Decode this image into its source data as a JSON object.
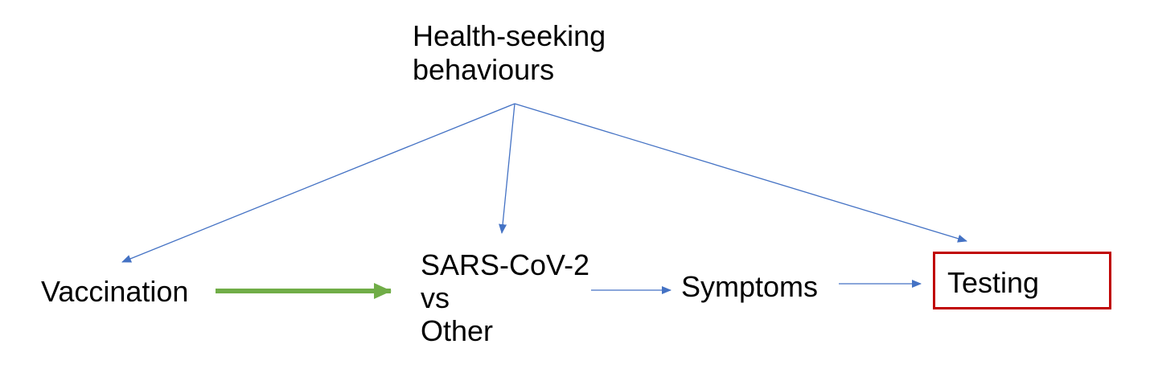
{
  "nodes": {
    "health": {
      "line1": "Health-seeking",
      "line2": "behaviours"
    },
    "vaccination": {
      "label": "Vaccination"
    },
    "sars": {
      "line1": "SARS-CoV-2",
      "line2": "vs",
      "line3": "Other"
    },
    "symptoms": {
      "label": "Symptoms"
    },
    "testing": {
      "label": "Testing"
    }
  },
  "colors": {
    "arrow_blue": "#4472c4",
    "arrow_green": "#70ad47",
    "highlight_border": "#c00000"
  },
  "edges": [
    {
      "from": "health",
      "to": "vaccination",
      "style": "thin-blue"
    },
    {
      "from": "health",
      "to": "sars",
      "style": "thin-blue"
    },
    {
      "from": "health",
      "to": "testing",
      "style": "thin-blue"
    },
    {
      "from": "vaccination",
      "to": "sars",
      "style": "thick-green"
    },
    {
      "from": "sars",
      "to": "symptoms",
      "style": "thin-blue"
    },
    {
      "from": "symptoms",
      "to": "testing",
      "style": "thin-blue"
    }
  ]
}
